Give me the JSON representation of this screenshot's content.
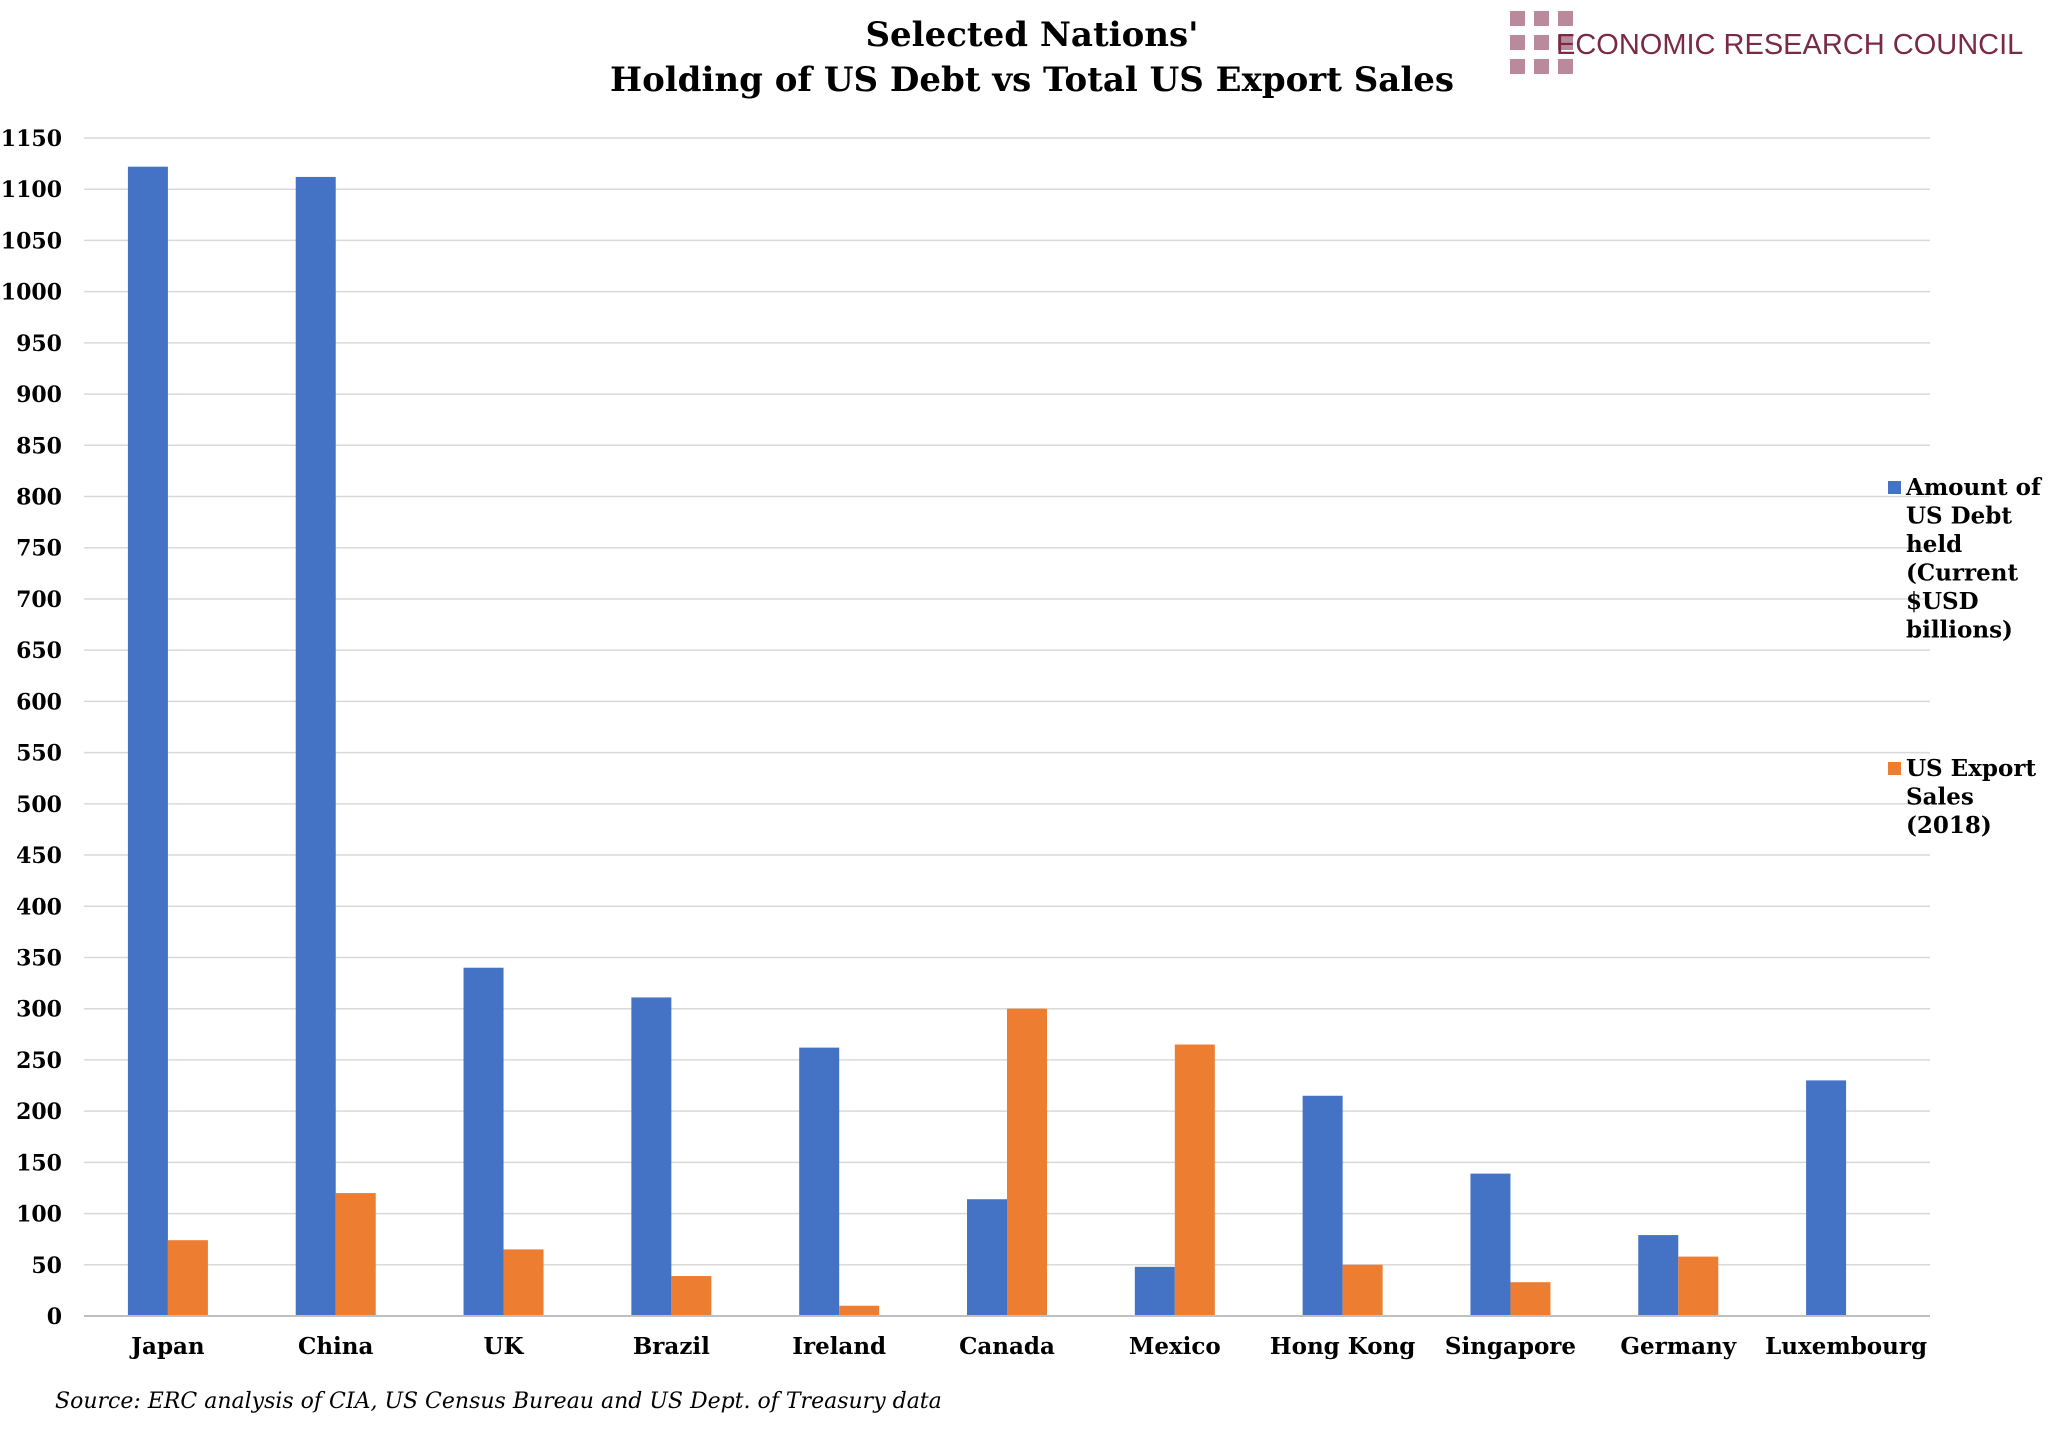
{
  "logo": {
    "text": "ECONOMIC RESEARCH COUNCIL",
    "color": "#7a2a45",
    "squares_color": "#b88a9b"
  },
  "footer": {
    "source": "Source: ERC analysis of CIA, US Census Bureau and US Dept. of Treasury data"
  },
  "chart_data": {
    "type": "bar",
    "title_lines": [
      "Selected Nations'",
      "Holding of US Debt vs Total US Export Sales"
    ],
    "categories": [
      "Japan",
      "China",
      "UK",
      "Brazil",
      "Ireland",
      "Canada",
      "Mexico",
      "Hong Kong",
      "Singapore",
      "Germany",
      "Luxembourg"
    ],
    "series": [
      {
        "name": "Amount of US Debt held (Current $USD billions)",
        "legend_lines": [
          "Amount of",
          "US Debt",
          "held",
          "(Current",
          "$USD",
          "billions)"
        ],
        "color": "#4472c4",
        "values": [
          1122,
          1112,
          340,
          311,
          262,
          114,
          48,
          215,
          139,
          79,
          230
        ]
      },
      {
        "name": "US Export Sales (2018)",
        "legend_lines": [
          "US Export",
          "Sales",
          "(2018)"
        ],
        "color": "#ed7d31",
        "values": [
          74,
          120,
          65,
          39,
          10,
          300,
          265,
          50,
          33,
          58,
          null
        ]
      }
    ],
    "ylim": [
      0,
      1150
    ],
    "yticks": [
      0,
      50,
      100,
      150,
      200,
      250,
      300,
      350,
      400,
      450,
      500,
      550,
      600,
      650,
      700,
      750,
      800,
      850,
      900,
      950,
      1000,
      1050,
      1100,
      1150
    ],
    "grid": true,
    "legend_position": "right",
    "xlabel": "",
    "ylabel": ""
  }
}
